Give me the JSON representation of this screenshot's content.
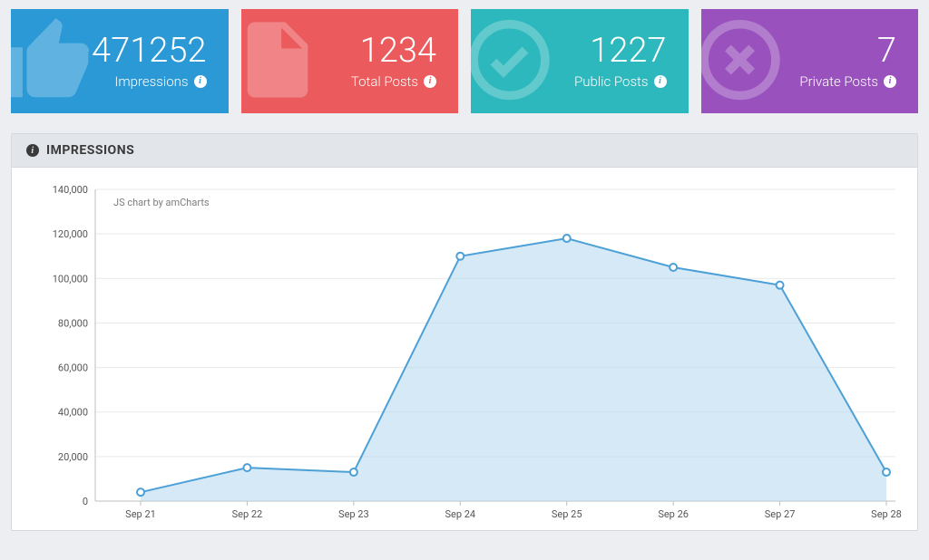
{
  "cards": [
    {
      "value": "471252",
      "label": "Impressions",
      "bg": "#2a99d6",
      "icon": "thumbs-up"
    },
    {
      "value": "1234",
      "label": "Total Posts",
      "bg": "#eb5b5d",
      "icon": "file"
    },
    {
      "value": "1227",
      "label": "Public Posts",
      "bg": "#2db8bd",
      "icon": "check-circle"
    },
    {
      "value": "7",
      "label": "Private Posts",
      "bg": "#9951bd",
      "icon": "x-circle"
    }
  ],
  "panel": {
    "title": "IMPRESSIONS"
  },
  "chart": {
    "type": "area",
    "credit": "JS chart by amCharts",
    "x_categories": [
      "Sep 21",
      "Sep 22",
      "Sep 23",
      "Sep 24",
      "Sep 25",
      "Sep 26",
      "Sep 27",
      "Sep 28"
    ],
    "y_values": [
      4000,
      15000,
      13000,
      110000,
      118000,
      105000,
      97000,
      13000
    ],
    "ylim": [
      0,
      140000
    ],
    "ytick_step": 20000,
    "ytick_labels": [
      "0",
      "20,000",
      "40,000",
      "60,000",
      "80,000",
      "100,000",
      "120,000",
      "140,000"
    ],
    "line_color": "#4ca0d6",
    "fill_color": "#b2d9ef",
    "point_stroke": "#4ca0d6",
    "point_fill": "#ffffff",
    "grid_color": "#e9e9e9",
    "axis_color": "#bfbfbf",
    "label_fontsize": 11,
    "background_color": "#ffffff",
    "point_radius": 4,
    "line_width": 2
  }
}
